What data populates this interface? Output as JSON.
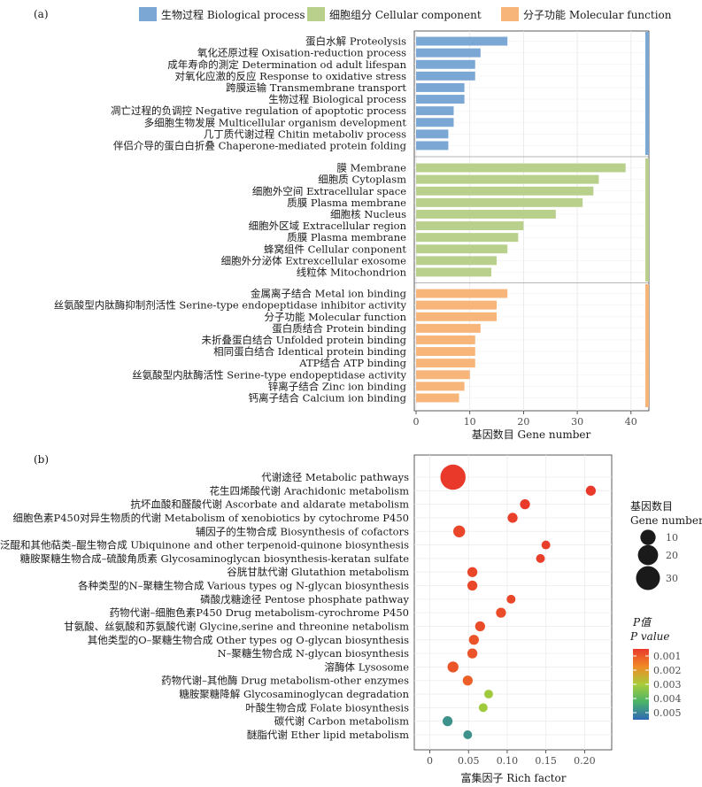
{
  "chart_data": [
    {
      "type": "bar",
      "panel_label": "(a)",
      "orientation": "horizontal",
      "xlabel": "基因数目 Gene number",
      "x_ticks": [
        0,
        10,
        20,
        30,
        40
      ],
      "xlim": [
        0,
        43
      ],
      "grid": true,
      "legend_position": "top",
      "legend": [
        {
          "label": "生物过程 Biological process",
          "color": "#7ba7d4"
        },
        {
          "label": "细胞组分 Cellular component",
          "color": "#b9cf8c"
        },
        {
          "label": "分子功能 Molecular function",
          "color": "#f7b57a"
        }
      ],
      "groups": [
        {
          "color": "#7ba7d4",
          "categories": [
            "蛋白水解 Proteolysis",
            "氧化还原过程 Oxisation-reduction process",
            "成年寿命的測定 Determination od adult lifespan",
            "对氧化应激的反应 Response to oxidative stress",
            "跨膜运输 Transmembrane transport",
            "生物过程 Biological process",
            "凋亡过程的负调控 Negative regulation of apoptotic process",
            "多细胞生物发展 Multicellular organism development",
            "几丁质代谢过程 Chitin metaboliv process",
            "伴侣介导的蛋白白折叠 Chaperone-mediated protein folding"
          ],
          "values": [
            17,
            12,
            11,
            11,
            9,
            9,
            7,
            7,
            6,
            6
          ]
        },
        {
          "color": "#b9cf8c",
          "categories": [
            "膜 Membrane",
            "细胞质 Cytoplasm",
            "细胞外空间 Extracellular space",
            "质膜 Plasma membrane",
            "细胞核 Nucleus",
            "细胞外区域 Extracellular region",
            "质膜 Plasma membrane",
            "蜂窝组件 Cellular conponent",
            "细胞外分泌体 Extrexcellular exosome",
            "线粒体 Mitochondrion"
          ],
          "values": [
            39,
            34,
            33,
            31,
            26,
            20,
            19,
            17,
            15,
            14
          ]
        },
        {
          "color": "#f7b57a",
          "categories": [
            "金属离子结合 Metal ion binding",
            "丝氨酸型内肽酶抑制剂活性 Serine-type endopeptidase inhibitor activity",
            "分子功能 Molecular function",
            "蛋白质结合 Protein binding",
            "未折叠蛋白结合 Unfolded protein binding",
            "相同蛋白结合 Identical protein binding",
            "ATP结合 ATP binding",
            "丝氨酸型内肽酶活性 Serine-type endopeptidase activity",
            "锌离子结合 Zinc ion binding",
            "钙离子结合 Calcium ion binding"
          ],
          "values": [
            17,
            15,
            15,
            12,
            11,
            11,
            11,
            10,
            9,
            8
          ]
        }
      ]
    },
    {
      "type": "scatter",
      "panel_label": "(b)",
      "xlabel": "富集因子 Rich factor",
      "x_ticks": [
        0,
        0.05,
        0.1,
        0.15,
        0.2
      ],
      "x_tick_labels": [
        "0",
        "0.05",
        "0.10",
        "0.15",
        "0.20"
      ],
      "xlim": [
        -0.02,
        0.235
      ],
      "grid": true,
      "categories": [
        "代谢途径 Metabolic pathways",
        "花生四烯酸代谢 Arachidonic metabolism",
        "抗坏血酸和醛酸代谢 Ascorbate and aldarate metabolism",
        "细胞色素P450对异生物质的代谢 Metabolism of xenobiotics by cytochrome P450",
        "辅因子的生物合成 Biosynthesis of cofactors",
        "泛醌和其他萜类–醌生物合成 Ubiquinone and other terpenoid-quinone biosynthesis",
        "糖胺聚糖生物合成–硫酸角质素 Glycosaminoglycan biosynthesis-keratan sulfate",
        "谷胱甘肽代谢 Glutathion metabolism",
        "各种类型的N–聚糖生物合成 Various types og N-glycan biosynthesis",
        "磷酸戊糖途径 Pentose phosphate pathway",
        "药物代谢–细胞色素P450 Drug metabolism-cyrochrome P450",
        "甘氨酸、丝氨酸和苏氨酸代谢 Glycine,serine and threonine netabolism",
        "其他类型的O–聚糖生物合成 Other types og O-glycan biosynthesis",
        "N–聚糖生物合成 N-glycan biosynthesis",
        "溶酶体 Lysosome",
        "药物代谢–其他酶 Drug metabolism-other enzymes",
        "糖胺聚糖降解 Glycosaminoglycan degradation",
        "叶酸生物合成 Folate biosynthesis",
        "碳代谢 Carbon metabolism",
        "醚脂代谢 Ether lipid metabolism"
      ],
      "x": [
        0.03,
        0.208,
        0.123,
        0.107,
        0.038,
        0.15,
        0.143,
        0.055,
        0.055,
        0.105,
        0.092,
        0.065,
        0.057,
        0.055,
        0.03,
        0.049,
        0.076,
        0.069,
        0.023,
        0.049
      ],
      "gene_number": [
        34,
        3,
        3,
        3,
        5,
        2,
        2,
        3,
        3,
        2,
        3,
        3,
        3,
        3,
        4,
        3,
        2,
        2,
        3,
        2
      ],
      "p_value": [
        0.0005,
        0.0005,
        0.0005,
        0.0006,
        0.0007,
        0.0006,
        0.0006,
        0.0007,
        0.0007,
        0.0007,
        0.0008,
        0.0008,
        0.0009,
        0.0009,
        0.0009,
        0.0011,
        0.0031,
        0.0031,
        0.0048,
        0.0048
      ],
      "size_legend": {
        "title_cn": "基因数目",
        "title_en": "Gene number",
        "values": [
          10,
          20,
          30
        ]
      },
      "color_legend": {
        "title_cn": "P值",
        "title_en": "P value",
        "ticks": [
          0.001,
          0.002,
          0.003,
          0.004,
          0.005
        ],
        "tick_labels": [
          "0.001",
          "0.002",
          "0.003",
          "0.004",
          "0.005"
        ],
        "range": [
          0.0005,
          0.0055
        ],
        "colors": [
          "#e8392b",
          "#f08a24",
          "#a8cc3a",
          "#49b36a",
          "#2f68b5"
        ]
      }
    }
  ]
}
